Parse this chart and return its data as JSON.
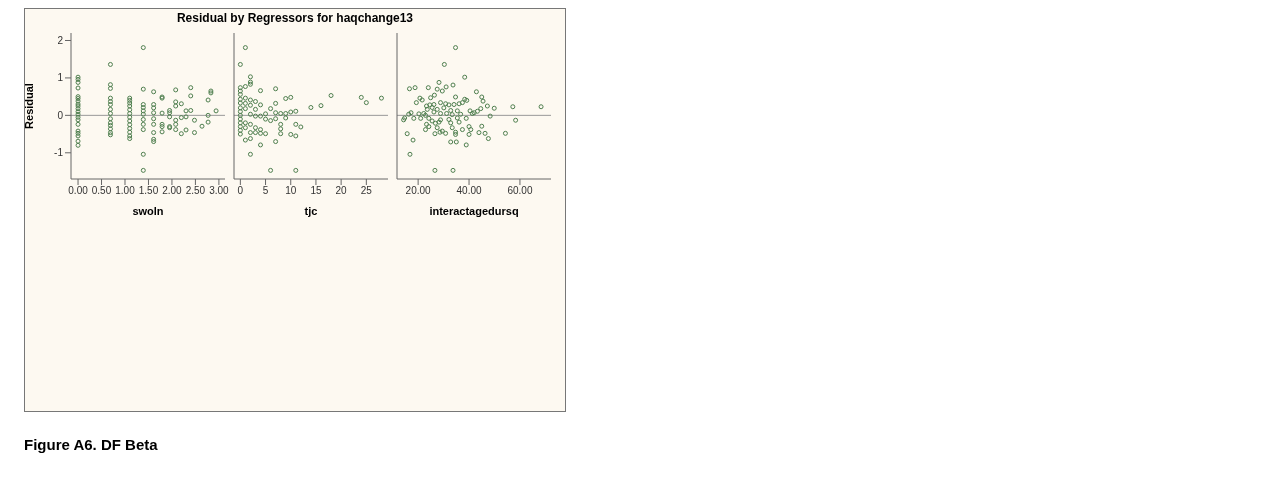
{
  "chart_data": [
    {
      "type": "scatter",
      "title": "Residual by Regressors for haqchange13",
      "xlabel": "swoln",
      "ylabel": "Residual",
      "marker": "circle",
      "color": "#4f7f4f",
      "annotations": [
        "Figure A6. DF Beta"
      ],
      "ref_lines": [
        {
          "axis": "y",
          "value": 0,
          "color": "#999999"
        }
      ],
      "xlim": [
        -0.15,
        3.13
      ],
      "ylim": [
        -1.7,
        2.2
      ],
      "xticks": [
        {
          "value": 0,
          "label": "0.00"
        },
        {
          "value": 0.5,
          "label": "0.50"
        },
        {
          "value": 1,
          "label": "1.00"
        },
        {
          "value": 1.5,
          "label": "1.50"
        },
        {
          "value": 2,
          "label": "2.00"
        },
        {
          "value": 2.5,
          "label": "2.50"
        },
        {
          "value": 3,
          "label": "3.00"
        }
      ],
      "yticks": [
        -1,
        0,
        1,
        2
      ],
      "x": [
        0,
        0,
        0,
        0,
        0,
        0,
        0,
        0,
        0,
        0,
        0,
        0,
        0,
        0,
        0,
        0,
        0,
        0,
        0,
        0,
        0.69,
        0.69,
        0.69,
        0.69,
        0.69,
        0.69,
        0.69,
        0.69,
        0.69,
        0.69,
        0.69,
        0.69,
        0.69,
        0.69,
        1.1,
        1.1,
        1.1,
        1.1,
        1.1,
        1.1,
        1.1,
        1.1,
        1.1,
        1.1,
        1.1,
        1.1,
        1.1,
        1.39,
        1.39,
        1.39,
        1.39,
        1.39,
        1.39,
        1.39,
        1.39,
        1.39,
        1.39,
        1.39,
        1.61,
        1.61,
        1.61,
        1.61,
        1.61,
        1.61,
        1.61,
        1.61,
        1.61,
        1.79,
        1.79,
        1.79,
        1.79,
        1.79,
        1.79,
        1.95,
        1.95,
        1.95,
        1.95,
        1.95,
        2.08,
        2.08,
        2.08,
        2.08,
        2.08,
        2.08,
        2.2,
        2.2,
        2.2,
        2.3,
        2.3,
        2.3,
        2.4,
        2.4,
        2.4,
        2.48,
        2.48,
        2.64,
        2.77,
        2.77,
        2.77,
        2.83,
        2.83,
        2.94
      ],
      "values": [
        1.02,
        0.96,
        0.88,
        0.73,
        0.5,
        0.45,
        0.38,
        0.3,
        0.25,
        0.18,
        0.1,
        0.03,
        -0.05,
        -0.12,
        -0.24,
        -0.42,
        -0.48,
        -0.55,
        -0.69,
        -0.8,
        1.36,
        0.82,
        0.72,
        0.46,
        0.37,
        0.29,
        0.16,
        0.05,
        -0.09,
        -0.2,
        -0.27,
        -0.36,
        -0.46,
        -0.52,
        0.46,
        0.4,
        0.33,
        0.25,
        0.15,
        0.05,
        -0.05,
        -0.15,
        -0.25,
        -0.35,
        -0.45,
        -0.55,
        -0.62,
        1.81,
        0.7,
        0.29,
        0.21,
        0.12,
        0.03,
        -0.11,
        -0.24,
        -0.38,
        -1.04,
        -1.47,
        0.63,
        0.29,
        0.2,
        0.07,
        -0.09,
        -0.24,
        -0.46,
        -0.64,
        -0.7,
        0.49,
        0.46,
        0.06,
        -0.24,
        -0.3,
        -0.44,
        0.13,
        0.07,
        -0.04,
        -0.3,
        -0.33,
        0.68,
        0.36,
        0.25,
        -0.13,
        -0.24,
        -0.38,
        0.31,
        -0.06,
        -0.49,
        0.12,
        -0.04,
        -0.39,
        0.74,
        0.52,
        0.13,
        -0.13,
        -0.46,
        -0.29,
        0.41,
        0,
        -0.18,
        0.65,
        0.6,
        0.12
      ]
    },
    {
      "type": "scatter",
      "xlabel": "tjc",
      "marker": "circle",
      "color": "#4f7f4f",
      "tick_labels": "x",
      "ref_lines": [
        {
          "axis": "y",
          "value": 0,
          "color": "#999999"
        }
      ],
      "xlim": [
        -1.26,
        29.3
      ],
      "ylim": [
        -1.7,
        2.2
      ],
      "xticks": [
        0,
        5,
        10,
        15,
        20,
        25
      ],
      "yticks": [
        -1,
        0,
        1,
        2
      ],
      "x": [
        1,
        0,
        2,
        2,
        2,
        0,
        0,
        0,
        1,
        4,
        7,
        0,
        0,
        0,
        0,
        0,
        0,
        0,
        0,
        0,
        0,
        1,
        1,
        1,
        1,
        1,
        1,
        2,
        2,
        2,
        2,
        2,
        2,
        2,
        3,
        3,
        3,
        3,
        3,
        4,
        4,
        4,
        4,
        4,
        5,
        5,
        5,
        6,
        6,
        6,
        7,
        7,
        7,
        7,
        8,
        8,
        8,
        8,
        9,
        9,
        9,
        10,
        10,
        10,
        11,
        11,
        11,
        11,
        12,
        14,
        16,
        18,
        24,
        25,
        28
      ],
      "values": [
        1.81,
        1.36,
        1.03,
        0.89,
        0.83,
        0.74,
        0.65,
        0.56,
        0.77,
        0.66,
        0.71,
        0.43,
        0.33,
        0.2,
        0.1,
        0,
        -0.1,
        -0.2,
        -0.3,
        -0.4,
        -0.5,
        0.46,
        0.32,
        0.18,
        -0.2,
        -0.33,
        -0.66,
        0.41,
        0.27,
        0.03,
        -0.24,
        -0.46,
        -0.62,
        -1.04,
        0.37,
        0.16,
        -0.02,
        -0.33,
        -0.46,
        0.28,
        -0.02,
        -0.38,
        -0.48,
        -0.79,
        0.04,
        -0.1,
        -0.49,
        0.18,
        -0.14,
        -1.47,
        0.32,
        0.07,
        -0.09,
        -0.7,
        0.05,
        -0.24,
        -0.36,
        -0.49,
        0.45,
        0.05,
        -0.07,
        0.48,
        0.09,
        -0.51,
        0.11,
        -0.24,
        -0.55,
        -1.47,
        -0.31,
        0.21,
        0.26,
        0.53,
        0.48,
        0.34,
        0.46
      ]
    },
    {
      "type": "scatter",
      "xlabel": "interactagedursq",
      "marker": "circle",
      "color": "#4f7f4f",
      "tick_labels": "x",
      "ref_lines": [
        {
          "axis": "y",
          "value": 0,
          "color": "#999999"
        }
      ],
      "xlim": [
        11.7,
        72.2
      ],
      "ylim": [
        -1.7,
        2.2
      ],
      "xticks": [
        {
          "value": 20,
          "label": "20.00"
        },
        {
          "value": 40,
          "label": "40.00"
        },
        {
          "value": 60,
          "label": "60.00"
        }
      ],
      "yticks": [
        -1,
        0,
        1,
        2
      ],
      "x": [
        34.7,
        30.3,
        38.3,
        28.2,
        16.6,
        18.8,
        24,
        27.5,
        29.5,
        31,
        33.7,
        42.9,
        20.7,
        21.6,
        19.3,
        24.9,
        26.4,
        34.7,
        38.3,
        39.1,
        45,
        45.5,
        23.3,
        24.6,
        26.2,
        28.8,
        30.8,
        32.1,
        34.1,
        36.1,
        37.4,
        47.2,
        49.9,
        57.2,
        68.3,
        23.6,
        25.5,
        27.5,
        30.1,
        32.8,
        35.4,
        40.4,
        42,
        43.3,
        44.6,
        16.3,
        17.2,
        20.3,
        22.2,
        22.9,
        26.2,
        28.8,
        31.2,
        33.4,
        36.7,
        41.3,
        14.3,
        14.7,
        18.3,
        21,
        24.2,
        25.5,
        28.8,
        32.1,
        35.4,
        38.9,
        48.3,
        58.3,
        23.3,
        26.8,
        28.2,
        32.8,
        36.1,
        40,
        45,
        22.9,
        24.2,
        27.5,
        29.5,
        33.4,
        34.7,
        37.4,
        40.7,
        15.7,
        18,
        26.6,
        28.6,
        30.8,
        34.7,
        40,
        43.9,
        46.3,
        47.6,
        54.3,
        32.8,
        35,
        38.9,
        16.8,
        26.6,
        33.7
      ],
      "values": [
        1.81,
        1.36,
        1.02,
        0.88,
        0.71,
        0.74,
        0.74,
        0.7,
        0.65,
        0.76,
        0.81,
        0.63,
        0.46,
        0.41,
        0.34,
        0.47,
        0.54,
        0.49,
        0.43,
        0.4,
        0.49,
        0.38,
        0.25,
        0.28,
        0.29,
        0.34,
        0.31,
        0.28,
        0.29,
        0.31,
        0.34,
        0.25,
        0.19,
        0.23,
        0.23,
        0.16,
        0.21,
        0.16,
        0.2,
        0.13,
        0.12,
        0.12,
        0.07,
        0.11,
        0.18,
        0.03,
        0.07,
        0.04,
        0.05,
        0,
        0.09,
        0.05,
        0.05,
        0.02,
        0.03,
        0.05,
        -0.12,
        -0.07,
        -0.08,
        -0.08,
        -0.08,
        -0.15,
        -0.12,
        -0.11,
        -0.07,
        -0.08,
        -0.02,
        -0.13,
        -0.24,
        -0.21,
        -0.18,
        -0.2,
        -0.18,
        -0.3,
        -0.29,
        -0.38,
        -0.3,
        -0.33,
        -0.42,
        -0.33,
        -0.45,
        -0.38,
        -0.38,
        -0.49,
        -0.66,
        -0.49,
        -0.45,
        -0.48,
        -0.51,
        -0.51,
        -0.46,
        -0.48,
        -0.62,
        -0.48,
        -0.71,
        -0.71,
        -0.79,
        -1.04,
        -1.47,
        -1.47
      ]
    }
  ]
}
